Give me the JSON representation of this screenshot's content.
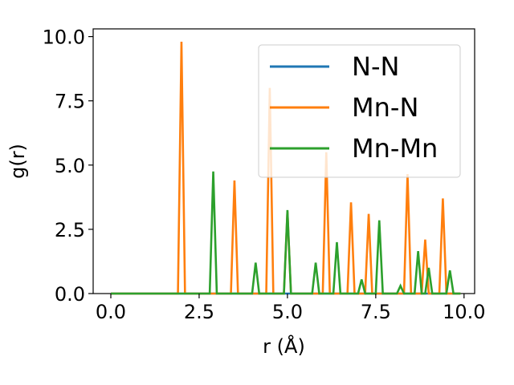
{
  "chart_data": {
    "type": "line",
    "xlabel": "r (Å)",
    "ylabel": "g(r)",
    "xlim": [
      -0.5,
      10.3
    ],
    "ylim": [
      0,
      10.3
    ],
    "xticks": [
      0.0,
      2.5,
      5.0,
      7.5,
      10.0
    ],
    "xtick_labels": [
      "0.0",
      "2.5",
      "5.0",
      "7.5",
      "10.0"
    ],
    "yticks": [
      0.0,
      2.5,
      5.0,
      7.5,
      10.0
    ],
    "ytick_labels": [
      "0.0",
      "2.5",
      "5.0",
      "7.5",
      "10.0"
    ],
    "grid": false,
    "legend_position": "top-right",
    "series": [
      {
        "name": "N-N",
        "color": "#1f77b4",
        "x": [
          0.0,
          9.9
        ],
        "y": [
          0.0,
          0.0
        ]
      },
      {
        "name": "Mn-N",
        "color": "#ff7f0e",
        "x": [
          0.0,
          1.9,
          2.0,
          2.1,
          3.4,
          3.5,
          3.6,
          4.4,
          4.5,
          4.6,
          4.9,
          5.0,
          5.1,
          6.0,
          6.1,
          6.2,
          6.7,
          6.8,
          6.9,
          7.2,
          7.3,
          7.4,
          8.3,
          8.4,
          8.5,
          8.8,
          8.9,
          9.0,
          9.3,
          9.4,
          9.5,
          9.9
        ],
        "y": [
          0.0,
          0.0,
          9.8,
          0.0,
          0.0,
          4.4,
          0.0,
          0.0,
          8.0,
          0.0,
          0.0,
          3.2,
          0.0,
          0.0,
          5.5,
          0.0,
          0.0,
          3.55,
          0.0,
          0.0,
          3.1,
          0.0,
          0.0,
          4.65,
          0.0,
          0.0,
          2.1,
          0.0,
          0.0,
          3.7,
          0.0,
          0.0
        ]
      },
      {
        "name": "Mn-Mn",
        "color": "#2ca02c",
        "x": [
          0.0,
          2.8,
          2.9,
          3.0,
          4.0,
          4.1,
          4.2,
          4.9,
          5.0,
          5.1,
          5.7,
          5.8,
          5.9,
          6.3,
          6.4,
          6.5,
          7.0,
          7.1,
          7.2,
          7.5,
          7.6,
          7.7,
          8.1,
          8.2,
          8.3,
          8.6,
          8.7,
          8.8,
          8.9,
          9.0,
          9.1,
          9.5,
          9.6,
          9.7,
          9.9
        ],
        "y": [
          0.0,
          0.0,
          4.75,
          0.0,
          0.0,
          1.2,
          0.0,
          0.0,
          3.25,
          0.0,
          0.0,
          1.2,
          0.0,
          0.0,
          2.0,
          0.0,
          0.0,
          0.55,
          0.0,
          0.0,
          2.85,
          0.0,
          0.0,
          0.3,
          0.0,
          0.0,
          1.65,
          0.0,
          0.0,
          1.0,
          0.0,
          0.0,
          0.9,
          0.0,
          0.0
        ]
      }
    ]
  }
}
